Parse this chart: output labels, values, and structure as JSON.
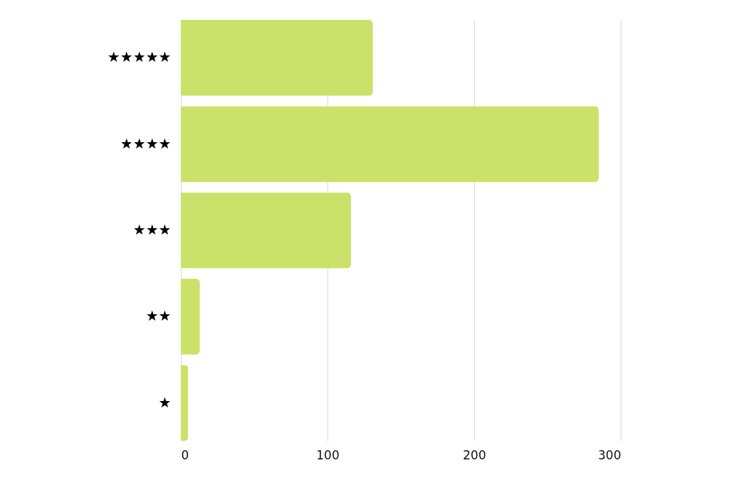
{
  "chart_data": {
    "type": "bar",
    "orientation": "horizontal",
    "categories": [
      "★★★★★",
      "★★★★",
      "★★★",
      "★★",
      "★"
    ],
    "values": [
      131,
      285,
      116,
      13,
      5
    ],
    "color": "#cbe26a",
    "xlim": [
      0,
      300
    ],
    "xticks": [
      0,
      100,
      200,
      300
    ],
    "grid": "x"
  }
}
